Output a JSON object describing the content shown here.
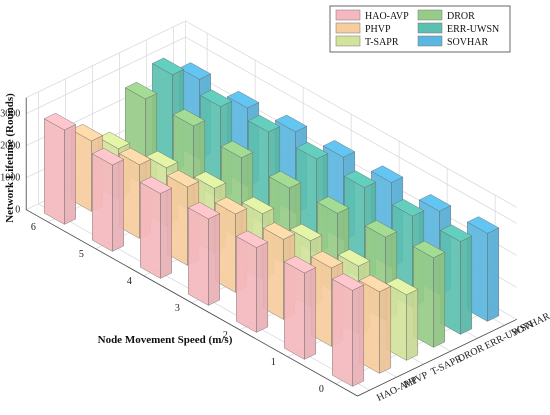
{
  "chart_data": {
    "type": "bar3d",
    "title": "",
    "xlabel": "Node Movement Speed (m/s)",
    "ylabel": "",
    "zlabel": "Network Lifetime (Rounds)",
    "x_ticks": [
      "0",
      "1",
      "2",
      "3",
      "4",
      "5",
      "6"
    ],
    "z_ticks": [
      "0",
      "1000",
      "2000",
      "3000"
    ],
    "zlim": [
      0,
      3500
    ],
    "grid": true,
    "legend_position": "top-right",
    "speeds": [
      0,
      1,
      2,
      3,
      4,
      5,
      6
    ],
    "series": [
      {
        "name": "HAO-AVP",
        "color": "#f4b8be",
        "values": [
          3000,
          2700,
          2650,
          2700,
          2650,
          2700,
          2950
        ]
      },
      {
        "name": "PHVP",
        "color": "#f7cc9e",
        "values": [
          2550,
          2450,
          2500,
          2450,
          2450,
          2300,
          2200
        ]
      },
      {
        "name": "T-SAPR",
        "color": "#d4e39c",
        "values": [
          2050,
          2100,
          2050,
          2050,
          2000,
          1800,
          1550
        ]
      },
      {
        "name": "DROR",
        "color": "#97cc88",
        "values": [
          2800,
          2600,
          2500,
          2450,
          2550,
          2700,
          2700
        ]
      },
      {
        "name": "ERR-UWSN",
        "color": "#5cc0b0",
        "values": [
          2900,
          2850,
          2900,
          2950,
          2950,
          2900,
          3050
        ]
      },
      {
        "name": "SOVHAR",
        "color": "#5bb6e0",
        "values": [
          2750,
          2600,
          2650,
          2600,
          2550,
          2450,
          2500
        ]
      }
    ]
  }
}
